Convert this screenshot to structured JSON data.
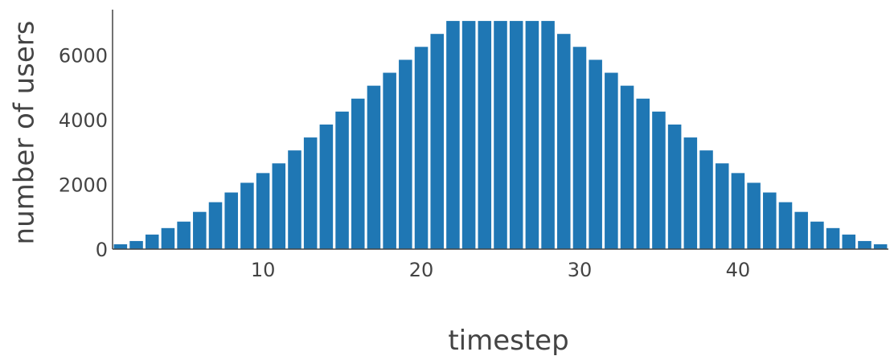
{
  "chart_data": {
    "type": "bar",
    "title": "",
    "xlabel": "timestep",
    "ylabel": "number of users",
    "x": [
      1,
      2,
      3,
      4,
      5,
      6,
      7,
      8,
      9,
      10,
      11,
      12,
      13,
      14,
      15,
      16,
      17,
      18,
      19,
      20,
      21,
      22,
      23,
      24,
      25,
      26,
      27,
      28,
      29,
      30,
      31,
      32,
      33,
      34,
      35,
      36,
      37,
      38,
      39,
      40,
      41,
      42,
      43,
      44,
      45,
      46,
      47,
      48,
      49
    ],
    "values": [
      150,
      250,
      450,
      650,
      850,
      1150,
      1450,
      1750,
      2050,
      2350,
      2650,
      3050,
      3450,
      3850,
      4250,
      4650,
      5050,
      5450,
      5850,
      6250,
      6650,
      7050,
      7050,
      7050,
      7050,
      7050,
      7050,
      7050,
      6650,
      6250,
      5850,
      5450,
      5050,
      4650,
      4250,
      3850,
      3450,
      3050,
      2650,
      2350,
      2050,
      1750,
      1450,
      1150,
      850,
      650,
      450,
      250,
      150
    ],
    "xlim": [
      0.5,
      49.5
    ],
    "ylim": [
      0,
      7400
    ],
    "xticks": [
      10,
      20,
      30,
      40
    ],
    "yticks": [
      0,
      2000,
      4000,
      6000
    ],
    "grid": false,
    "legend": "none",
    "bar_color": "#1f77b4"
  }
}
